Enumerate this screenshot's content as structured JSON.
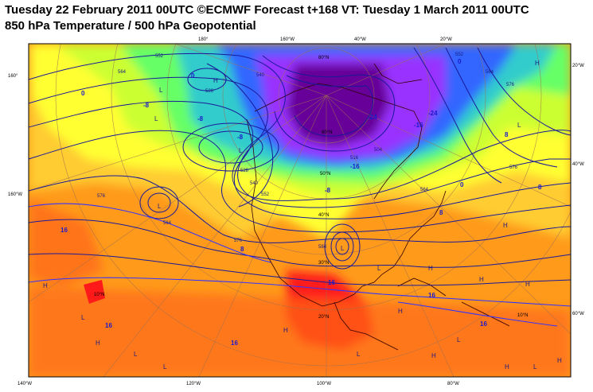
{
  "header": {
    "title_line1": "Tuesday 22 February 2011 00UTC ©ECMWF Forecast t+168 VT: Tuesday 1 March 2011 00UTC",
    "title_line2": "850 hPa Temperature / 500 hPa Geopotential"
  },
  "colors": {
    "warm_red": "#ff1a1a",
    "orange_red": "#ff6a1a",
    "orange": "#ff9a1a",
    "light_orange": "#ffcc33",
    "yellow": "#ffff33",
    "yellow_green": "#ccff33",
    "green": "#66ff66",
    "cyan": "#33cccc",
    "blue": "#3366ff",
    "violet": "#9933ff",
    "purple": "#660099",
    "contour_line": "#1a1a99"
  },
  "border_labels": {
    "left": [
      "160°",
      "160°W",
      "140°W"
    ],
    "right": [
      "20°W",
      "40°W",
      "60°W"
    ],
    "top": [
      "180°",
      "160°W",
      "40°W",
      "20°W"
    ],
    "bottom": [
      "140°W",
      "120°W",
      "100°W",
      "80°W"
    ]
  },
  "lat_labels": [
    "80°N",
    "60°N",
    "50°N",
    "40°N",
    "30°N",
    "20°N",
    "10°N",
    "10°N"
  ],
  "temperature_labels": [
    "0",
    "-8",
    "-8",
    "0",
    "-24",
    "-24",
    "-16",
    "-16",
    "-8",
    "0",
    "8",
    "8",
    "16",
    "16",
    "8",
    "16",
    "16",
    "16",
    "16",
    "0",
    "-8",
    "8"
  ],
  "geopotential_labels": [
    "552",
    "528",
    "540",
    "528",
    "504",
    "516",
    "540",
    "552",
    "564",
    "576",
    "564",
    "576",
    "552",
    "564",
    "576",
    "584",
    "564",
    "576"
  ],
  "pressure_centres": [
    "H",
    "L",
    "L",
    "L",
    "L",
    "L",
    "L",
    "H",
    "H",
    "H",
    "H",
    "L",
    "H",
    "L",
    "L",
    "H",
    "H",
    "H",
    "L",
    "H",
    "L",
    "H",
    "L",
    "H",
    "L",
    "H"
  ]
}
